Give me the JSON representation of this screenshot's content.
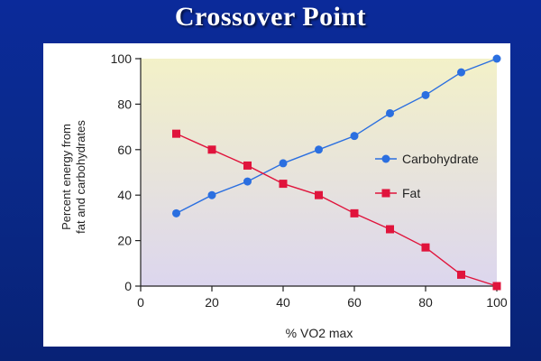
{
  "slide": {
    "title": "Crossover Point"
  },
  "chart_data": {
    "type": "line",
    "x": [
      10,
      20,
      30,
      40,
      50,
      60,
      70,
      80,
      90,
      100
    ],
    "series": [
      {
        "name": "Carbohydrate",
        "values": [
          32,
          40,
          46,
          54,
          60,
          66,
          76,
          84,
          94,
          100
        ],
        "color": "#2b6fe0",
        "marker": "circle"
      },
      {
        "name": "Fat",
        "values": [
          67,
          60,
          53,
          45,
          40,
          32,
          25,
          17,
          5,
          0
        ],
        "color": "#e0143c",
        "marker": "square"
      }
    ],
    "xlabel": "% VO2 max",
    "ylabel_lines": [
      "Percent energy from",
      "fat and carbohydrates"
    ],
    "xlim": [
      0,
      100
    ],
    "ylim": [
      0,
      100
    ],
    "xticks": [
      "0",
      "20",
      "40",
      "60",
      "80",
      "100"
    ],
    "yticks": [
      "0",
      "20",
      "40",
      "60",
      "80",
      "100"
    ],
    "legend_position": "right-middle",
    "grid": false,
    "plot_background": [
      "#f3f1c8",
      "#dcd6ee"
    ]
  }
}
